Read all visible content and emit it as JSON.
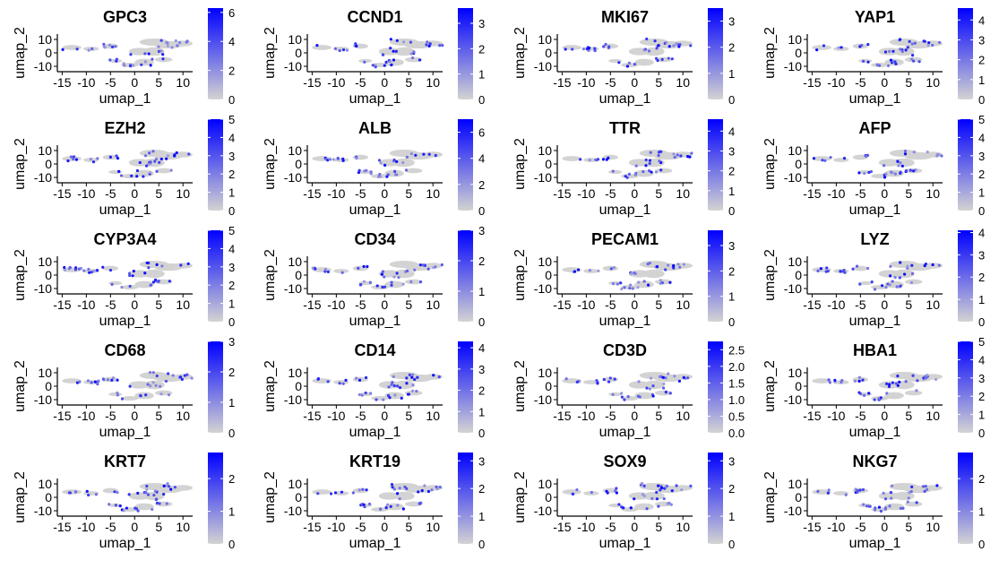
{
  "colors": {
    "low": "#d3d3d3",
    "high": "#0000ff",
    "background": "#ffffff",
    "axis": "#000000"
  },
  "chart_data": {
    "type": "scatter",
    "layout": "grid 5 rows x 4 columns of feature plots",
    "xlabel": "umap_1",
    "ylabel": "umap_2",
    "x_ticks": [
      "-15",
      "-10",
      "-5",
      "0",
      "5",
      "10"
    ],
    "y_ticks": [
      "10",
      "0",
      "-10"
    ],
    "xlim": [
      -16,
      12
    ],
    "ylim": [
      -14,
      14
    ],
    "legend": "color bar at right of each panel",
    "panels": [
      {
        "title": "GPC3",
        "max": 6.3,
        "cb_ticks": [
          "6",
          "4",
          "2",
          "0"
        ]
      },
      {
        "title": "CCND1",
        "max": 3.6,
        "cb_ticks": [
          "3",
          "2",
          "1",
          "0"
        ]
      },
      {
        "title": "MKI67",
        "max": 3.5,
        "cb_ticks": [
          "3",
          "2",
          "1",
          "0"
        ]
      },
      {
        "title": "YAP1",
        "max": 4.6,
        "cb_ticks": [
          "4",
          "3",
          "2",
          "1",
          "0"
        ]
      },
      {
        "title": "EZH2",
        "max": 5.0,
        "cb_ticks": [
          "5",
          "4",
          "3",
          "2",
          "1",
          "0"
        ]
      },
      {
        "title": "ALB",
        "max": 7.0,
        "cb_ticks": [
          "6",
          "4",
          "2",
          "0"
        ]
      },
      {
        "title": "TTR",
        "max": 4.6,
        "cb_ticks": [
          "4",
          "3",
          "2",
          "1",
          "0"
        ]
      },
      {
        "title": "AFP",
        "max": 5.0,
        "cb_ticks": [
          "5",
          "4",
          "3",
          "2",
          "1",
          "0"
        ]
      },
      {
        "title": "CYP3A4",
        "max": 5.0,
        "cb_ticks": [
          "5",
          "4",
          "3",
          "2",
          "1",
          "0"
        ]
      },
      {
        "title": "CD34",
        "max": 3.0,
        "cb_ticks": [
          "3",
          "2",
          "1",
          "0"
        ]
      },
      {
        "title": "PECAM1",
        "max": 3.6,
        "cb_ticks": [
          "3",
          "2",
          "1",
          "0"
        ]
      },
      {
        "title": "LYZ",
        "max": 4.1,
        "cb_ticks": [
          "4",
          "3",
          "2",
          "1",
          "0"
        ]
      },
      {
        "title": "CD68",
        "max": 3.0,
        "cb_ticks": [
          "3",
          "2",
          "1",
          "0"
        ]
      },
      {
        "title": "CD14",
        "max": 4.3,
        "cb_ticks": [
          "4",
          "3",
          "2",
          "1",
          "0"
        ]
      },
      {
        "title": "CD3D",
        "max": 2.75,
        "cb_ticks": [
          "2.5",
          "2.0",
          "1.5",
          "1.0",
          "0.5",
          "0.0"
        ]
      },
      {
        "title": "HBA1",
        "max": 5.0,
        "cb_ticks": [
          "5",
          "4",
          "3",
          "2",
          "1",
          "0"
        ]
      },
      {
        "title": "KRT7",
        "max": 2.8,
        "cb_ticks": [
          "2",
          "1",
          "0"
        ]
      },
      {
        "title": "KRT19",
        "max": 3.3,
        "cb_ticks": [
          "3",
          "2",
          "1",
          "0"
        ]
      },
      {
        "title": "SOX9",
        "max": 3.3,
        "cb_ticks": [
          "3",
          "2",
          "1",
          "0"
        ]
      },
      {
        "title": "NKG7",
        "max": 2.8,
        "cb_ticks": [
          "2",
          "1",
          "0"
        ]
      }
    ]
  }
}
